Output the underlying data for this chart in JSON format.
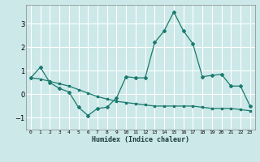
{
  "xlabel": "Humidex (Indice chaleur)",
  "ylabel": "",
  "background_color": "#cce8e8",
  "grid_color": "#ffffff",
  "line_color": "#1a7a6e",
  "x_ticks": [
    0,
    1,
    2,
    3,
    4,
    5,
    6,
    7,
    8,
    9,
    10,
    11,
    12,
    13,
    14,
    15,
    16,
    17,
    18,
    19,
    20,
    21,
    22,
    23
  ],
  "ylim": [
    -1.5,
    3.8
  ],
  "xlim": [
    -0.5,
    23.5
  ],
  "line1_x": [
    0,
    1,
    2,
    3,
    4,
    5,
    6,
    7,
    8,
    9,
    10,
    11,
    12,
    13,
    14,
    15,
    16,
    17,
    18,
    19,
    20,
    21,
    22,
    23
  ],
  "line1_y": [
    0.7,
    1.15,
    0.5,
    0.25,
    0.1,
    -0.55,
    -0.9,
    -0.6,
    -0.55,
    -0.15,
    0.75,
    0.7,
    0.7,
    2.2,
    2.7,
    3.5,
    2.7,
    2.15,
    0.75,
    0.8,
    0.85,
    0.35,
    0.35,
    -0.5
  ],
  "line2_x": [
    0,
    1,
    2,
    3,
    4,
    5,
    6,
    7,
    8,
    9,
    10,
    11,
    12,
    13,
    14,
    15,
    16,
    17,
    18,
    19,
    20,
    21,
    22,
    23
  ],
  "line2_y": [
    0.7,
    0.65,
    0.55,
    0.45,
    0.35,
    0.2,
    0.05,
    -0.1,
    -0.2,
    -0.3,
    -0.35,
    -0.4,
    -0.45,
    -0.5,
    -0.5,
    -0.5,
    -0.5,
    -0.5,
    -0.55,
    -0.6,
    -0.6,
    -0.6,
    -0.65,
    -0.7
  ]
}
